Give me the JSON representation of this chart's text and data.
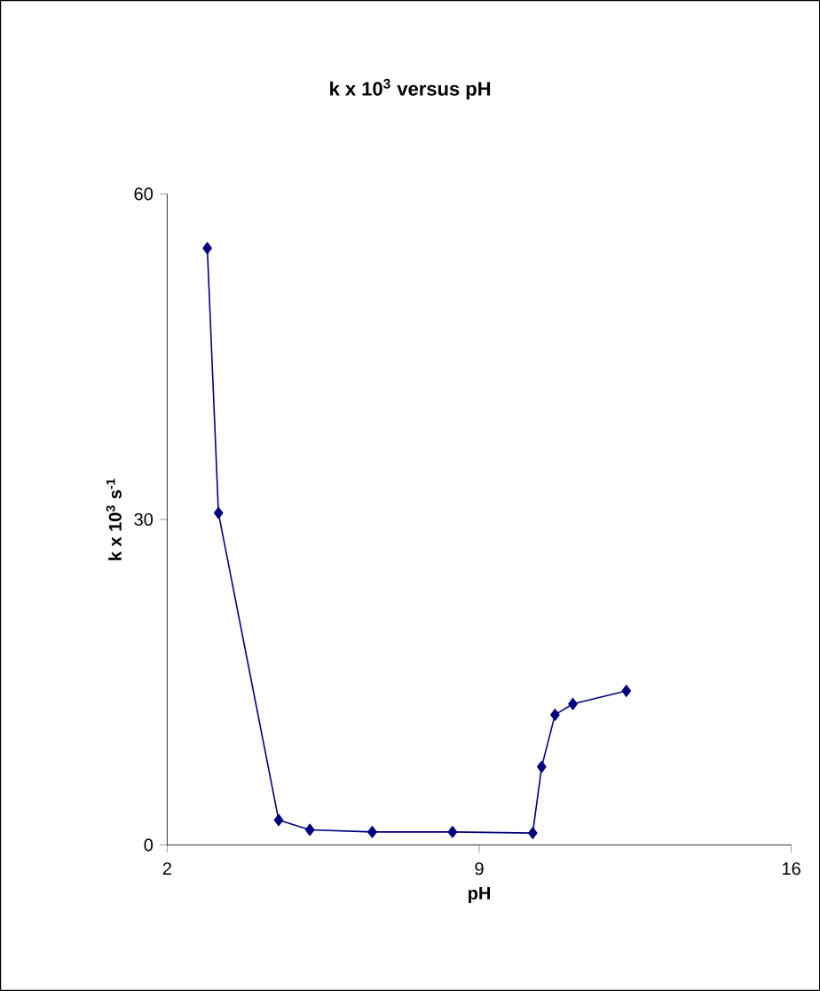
{
  "chart_data": {
    "type": "line",
    "title": "k  x 10$^{3}$ versus pH",
    "xlabel": "pH",
    "ylabel": "k x 10$^{3}$ s$^{-1}$",
    "x": [
      2.9,
      3.15,
      4.5,
      5.2,
      6.6,
      8.4,
      10.2,
      10.4,
      10.7,
      11.1,
      12.3
    ],
    "series": [
      {
        "color": "#000080",
        "values": [
          55,
          30.6,
          2.3,
          1.4,
          1.2,
          1.2,
          1.1,
          7.2,
          12,
          13,
          14.2
        ]
      }
    ],
    "xlim": [
      2,
      16
    ],
    "ylim": [
      0,
      60
    ],
    "xticks": [
      2,
      9,
      16
    ],
    "yticks": [
      0,
      30,
      60
    ],
    "marker": "diamond",
    "line_style": "solid"
  }
}
